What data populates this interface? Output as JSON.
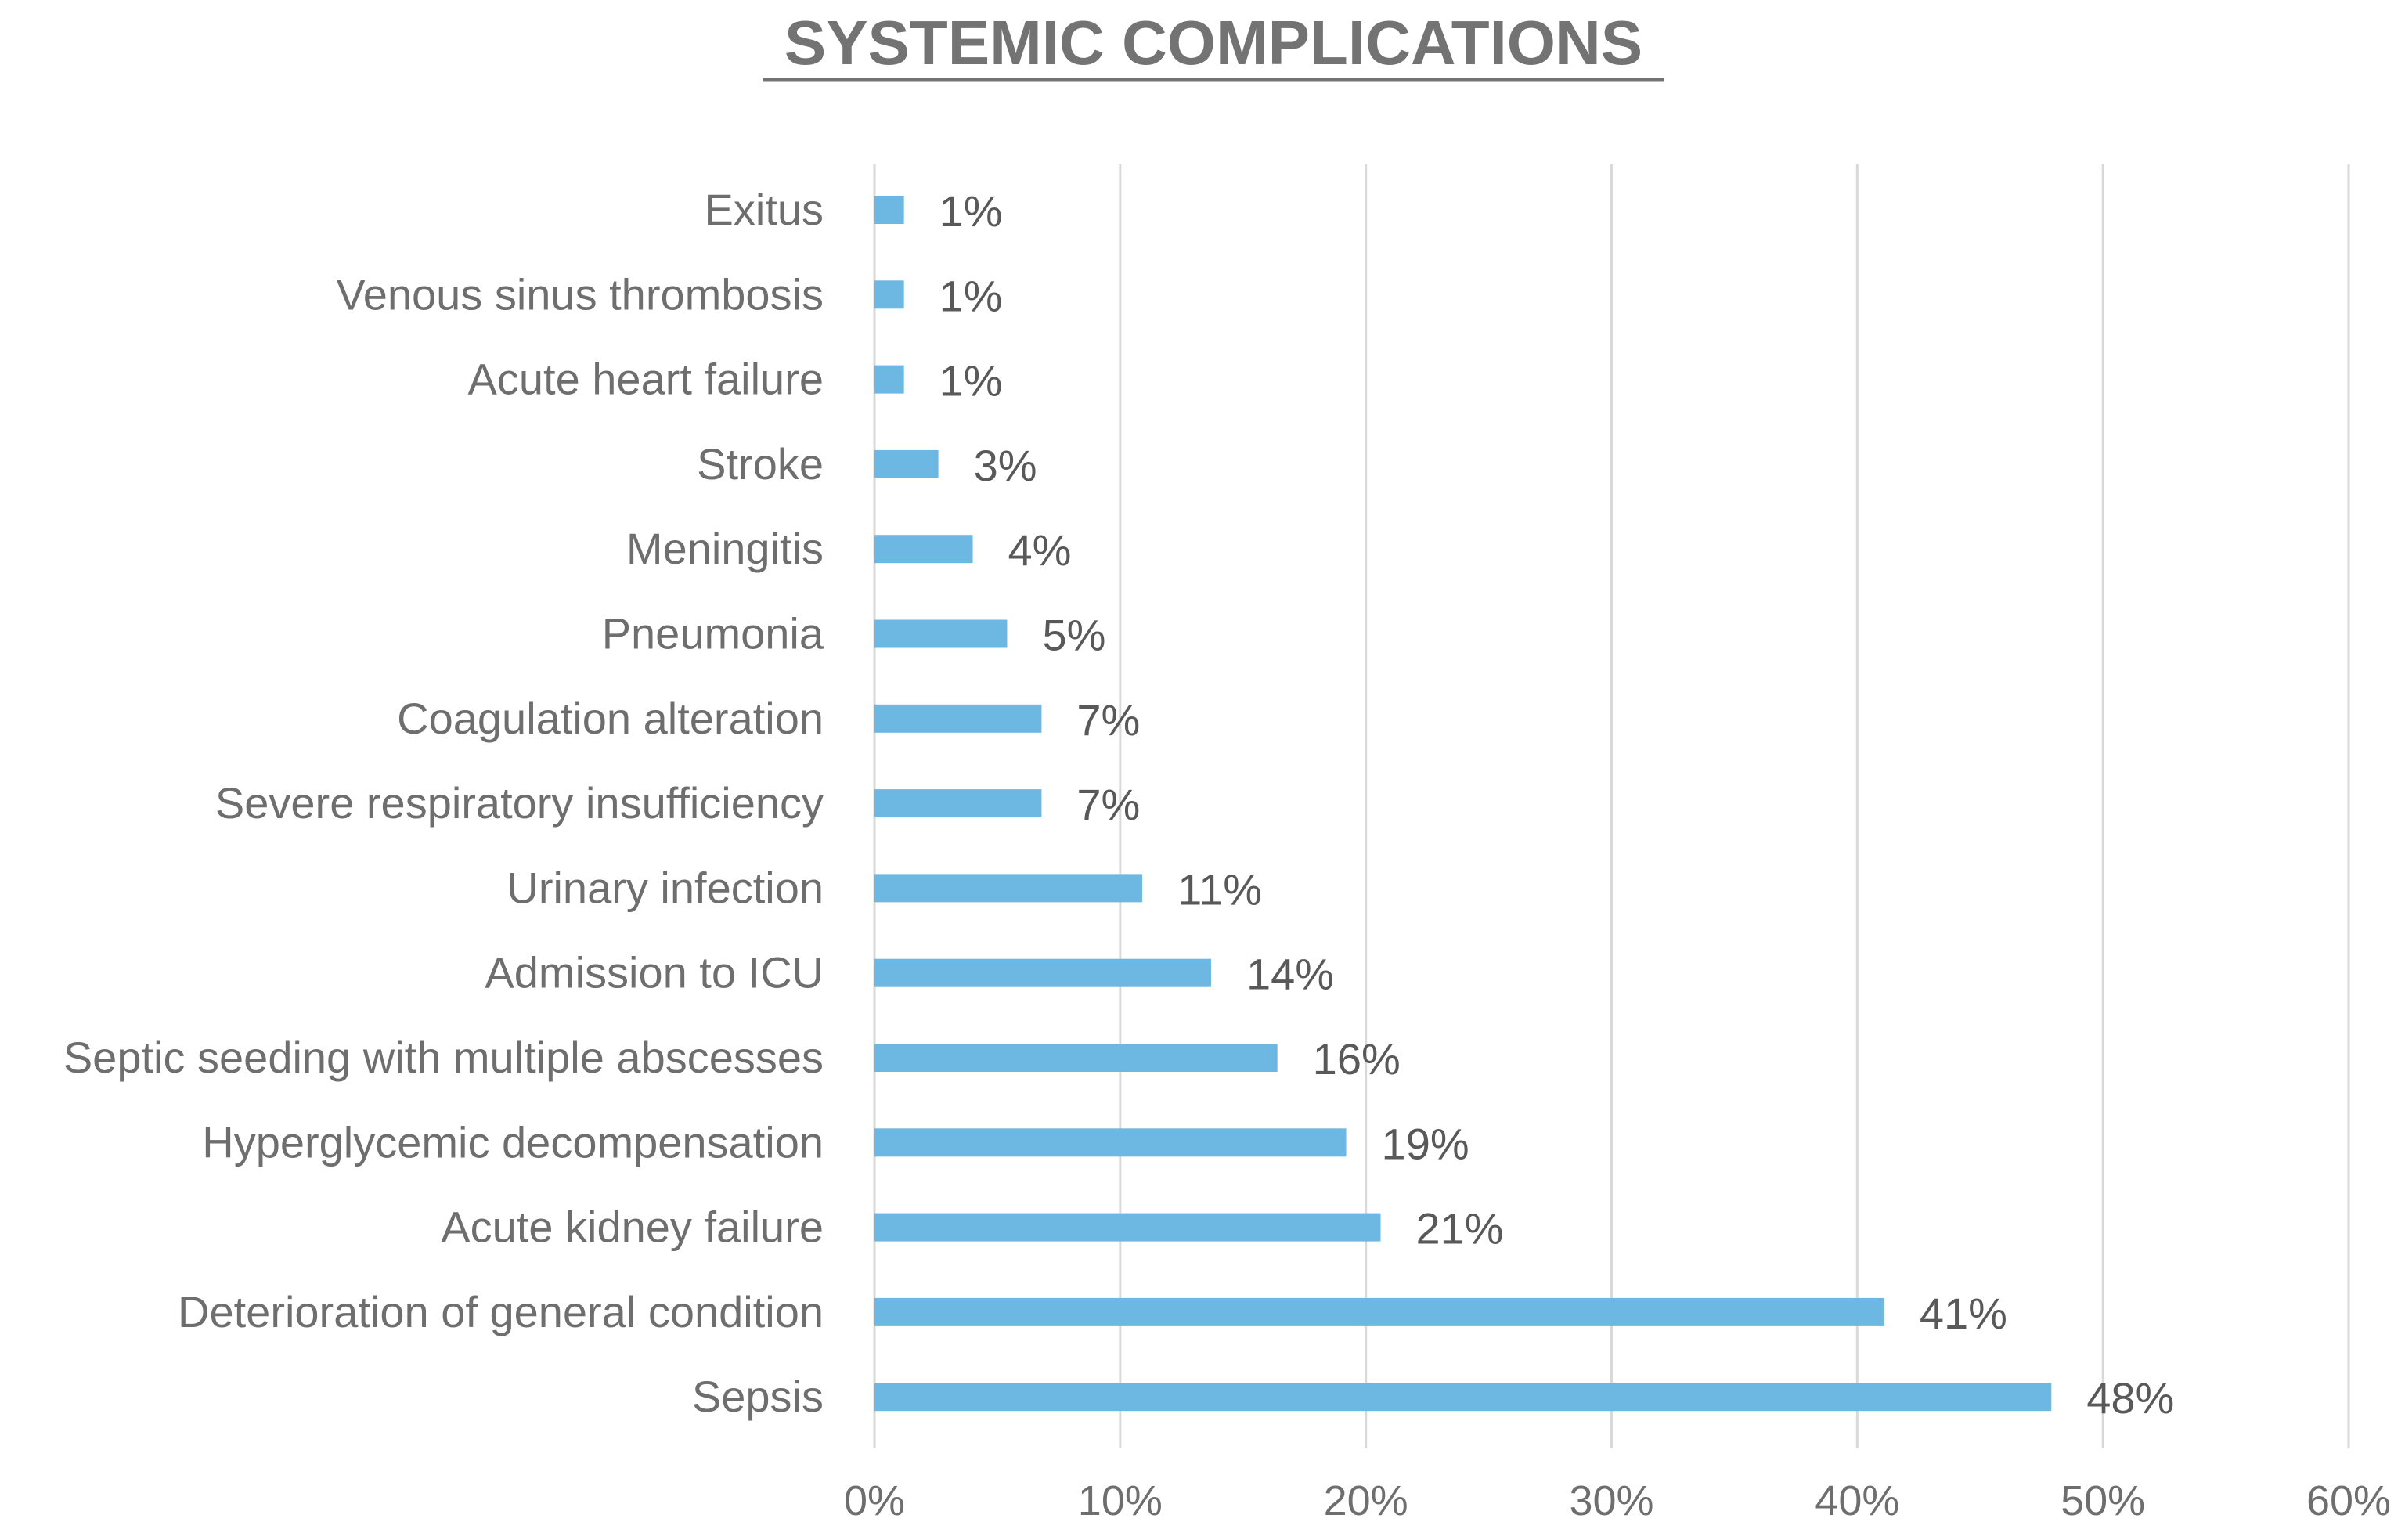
{
  "chart_data": {
    "type": "bar",
    "orientation": "horizontal",
    "title": "SYSTEMIC COMPLICATIONS",
    "xlabel": "",
    "ylabel": "",
    "categories": [
      "Exitus",
      "Venous sinus thrombosis",
      "Acute heart failure",
      "Stroke",
      "Meningitis",
      "Pneumonia",
      "Coagulation alteration",
      "Severe respiratory insufficiency",
      "Urinary infection",
      "Admission to ICU",
      "Septic seeding with multiple abscesses",
      "Hyperglycemic decompensation",
      "Acute kidney failure",
      "Deterioration of general condition",
      "Sepsis"
    ],
    "values": [
      1.2,
      1.2,
      1.2,
      2.6,
      4.0,
      5.4,
      6.8,
      6.8,
      10.9,
      13.7,
      16.4,
      19.2,
      20.6,
      41.1,
      47.9
    ],
    "data_labels": [
      "1%",
      "1%",
      "1%",
      "3%",
      "4%",
      "5%",
      "7%",
      "7%",
      "11%",
      "14%",
      "16%",
      "19%",
      "21%",
      "41%",
      "48%"
    ],
    "xlim": [
      0,
      60
    ],
    "xticks": [
      0,
      10,
      20,
      30,
      40,
      50,
      60
    ],
    "xtick_labels": [
      "0%",
      "10%",
      "20%",
      "30%",
      "40%",
      "50%",
      "60%"
    ],
    "grid": true,
    "legend": "none",
    "bar_color": "#6cb8e3",
    "grid_color": "#d9d9d9",
    "title_color": "#737373",
    "label_color": "#6e6e6e"
  }
}
